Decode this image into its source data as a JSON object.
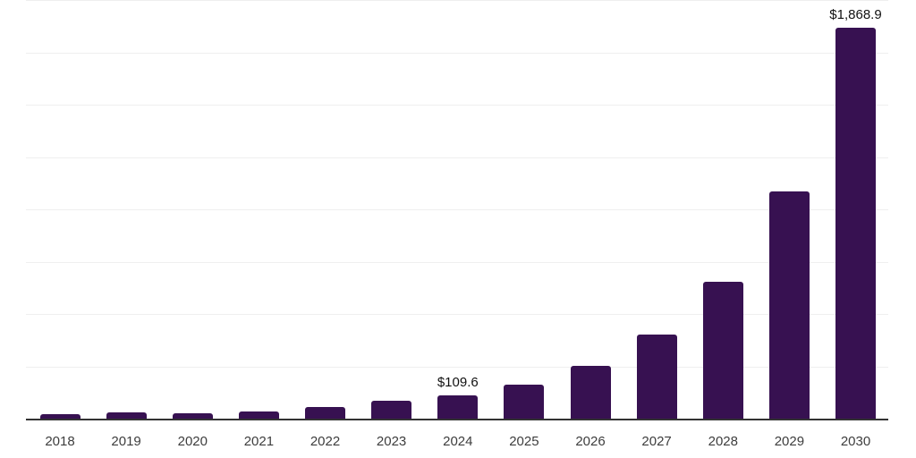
{
  "chart_data": {
    "type": "bar",
    "title": "",
    "xlabel": "",
    "ylabel": "",
    "categories": [
      "2018",
      "2019",
      "2020",
      "2021",
      "2022",
      "2023",
      "2024",
      "2025",
      "2026",
      "2027",
      "2028",
      "2029",
      "2030"
    ],
    "values": [
      21.3,
      29.8,
      25.6,
      34.1,
      55.4,
      84.8,
      109.6,
      162.5,
      252.0,
      402.2,
      652.4,
      1087.3,
      1868.9
    ],
    "value_labels": [
      {
        "category": "2024",
        "text": "$109.6"
      },
      {
        "category": "2030",
        "text": "$1,868.9"
      }
    ],
    "ylim": [
      0,
      2000
    ],
    "grid_step": 250,
    "grid": true,
    "legend": false,
    "y_axis_labels_shown": false,
    "colors": {
      "bar": "#371151",
      "gridline": "#efefef",
      "axis_line": "#333333",
      "tick_label": "#3d3d3d",
      "value_label": "#111111",
      "background": "#ffffff"
    }
  }
}
